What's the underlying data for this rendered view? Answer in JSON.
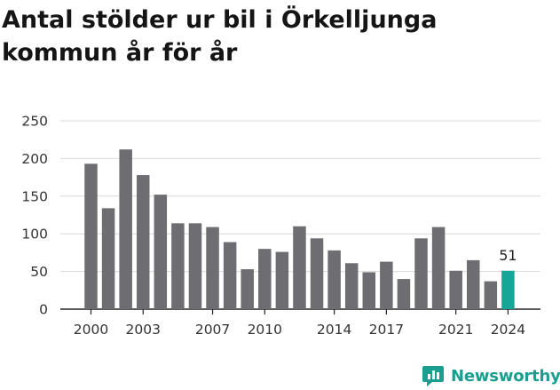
{
  "title": "Antal stölder ur bil i Örkelljunga kommun år för år",
  "brand": {
    "name": "Newsworthy",
    "color": "#1a9e8f"
  },
  "chart_data": {
    "type": "bar",
    "title": "Antal stölder ur bil i Örkelljunga kommun år för år",
    "xlabel": "",
    "ylabel": "",
    "categories": [
      "2000",
      "2001",
      "2002",
      "2003",
      "2004",
      "2005",
      "2006",
      "2007",
      "2008",
      "2009",
      "2010",
      "2011",
      "2012",
      "2013",
      "2014",
      "2015",
      "2016",
      "2017",
      "2018",
      "2019",
      "2020",
      "2021",
      "2022",
      "2023",
      "2024"
    ],
    "values": [
      193,
      134,
      212,
      178,
      152,
      114,
      114,
      109,
      89,
      53,
      80,
      76,
      110,
      94,
      78,
      61,
      49,
      63,
      40,
      94,
      109,
      51,
      65,
      37,
      51
    ],
    "x_tick_labels": [
      "2000",
      "2003",
      "2007",
      "2010",
      "2014",
      "2017",
      "2021",
      "2024"
    ],
    "y_ticks": [
      0,
      50,
      100,
      150,
      200,
      250
    ],
    "ylim": [
      0,
      250
    ],
    "grid": true,
    "bar_color": "#6e6d72",
    "highlight_color": "#16a596",
    "highlight_category": "2024",
    "data_labels": [
      {
        "category": "2024",
        "text": "51"
      }
    ]
  }
}
